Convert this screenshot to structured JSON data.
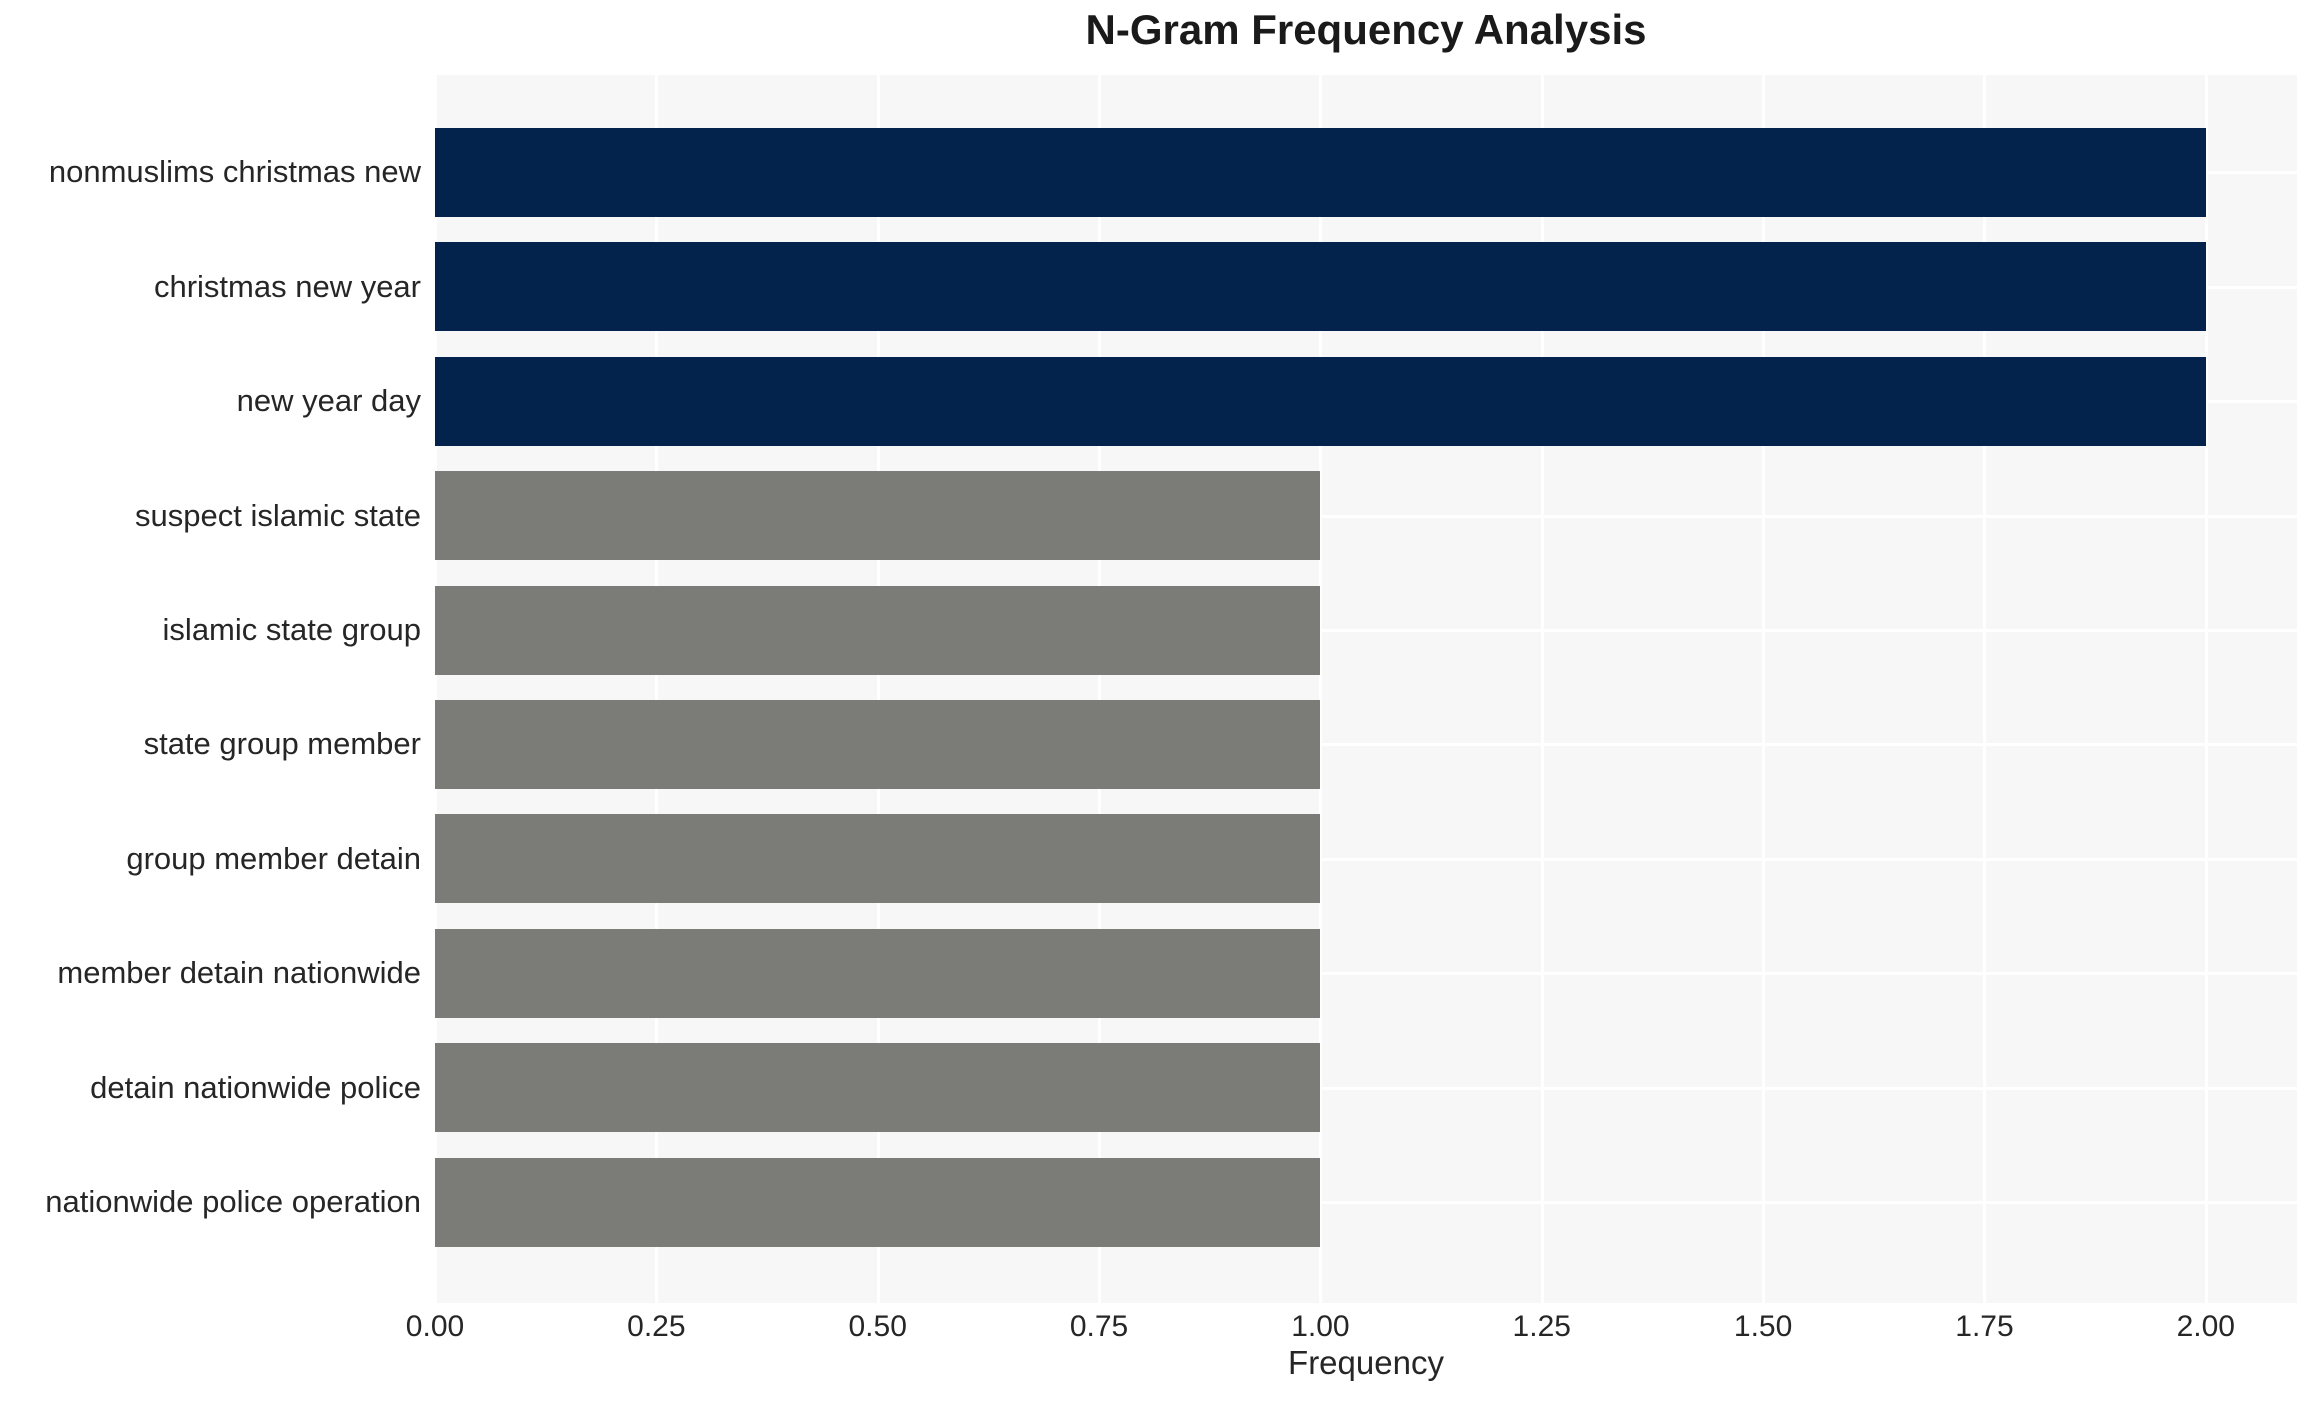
{
  "title": "N-Gram Frequency Analysis",
  "chart_data": {
    "type": "bar",
    "orientation": "horizontal",
    "title": "N-Gram Frequency Analysis",
    "xlabel": "Frequency",
    "ylabel": "",
    "categories": [
      "nonmuslims christmas new",
      "christmas new year",
      "new year day",
      "suspect islamic state",
      "islamic state group",
      "state group member",
      "group member detain",
      "member detain nationwide",
      "detain nationwide police",
      "nationwide police operation"
    ],
    "values": [
      2,
      2,
      2,
      1,
      1,
      1,
      1,
      1,
      1,
      1
    ],
    "colors": [
      "#03234d",
      "#03234d",
      "#03234d",
      "#7b7b78",
      "#7b7b78",
      "#7b7b78",
      "#7b7b78",
      "#7b7b78",
      "#7b7b78",
      "#7b7b78"
    ],
    "xticks": [
      0,
      0.25,
      0.5,
      0.75,
      1,
      1.25,
      1.5,
      1.75,
      2
    ],
    "xtick_labels": [
      "0.00",
      "0.25",
      "0.50",
      "0.75",
      "1.00",
      "1.25",
      "1.50",
      "1.75",
      "2.00"
    ],
    "xlim": [
      0,
      2.103
    ],
    "grid": true,
    "legend_position": "none",
    "plot_bg_color": "#f7f7f7",
    "grid_color": "#ffffff",
    "bar_color_freq2": "#03234d",
    "bar_color_freq1": "#7b7b78"
  }
}
